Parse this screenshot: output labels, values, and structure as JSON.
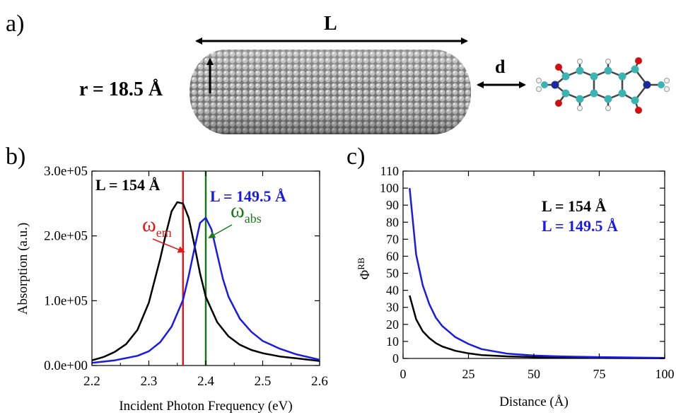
{
  "panel_a": {
    "label": "a)",
    "length_label": "L",
    "radius_label": "r = 18.5 Å",
    "distance_label": "d"
  },
  "colors": {
    "black_series": "#000000",
    "blue_series": "#1a1ae6",
    "red_marker": "#e01818",
    "green_marker": "#1a7a1a",
    "rod_grey": "#8a8a8a",
    "carbon": "#3ab3b3",
    "oxygen": "#d01010",
    "nitrogen": "#1a2a9a",
    "hydrogen": "#f2f2f2"
  },
  "chart_data": [
    {
      "panel": "b)",
      "type": "line",
      "xlabel": "Incident Photon Frequency (eV)",
      "ylabel": "Absorption (a.u.)",
      "xlim": [
        2.2,
        2.6
      ],
      "ylim": [
        0,
        300000
      ],
      "xticks": [
        "2.2",
        "2.3",
        "2.4",
        "2.5",
        "2.6"
      ],
      "xtick_values": [
        2.2,
        2.3,
        2.4,
        2.5,
        2.6
      ],
      "yticks": [
        "0.0e+00",
        "1.0e+05",
        "2.0e+05",
        "3.0e+05"
      ],
      "ytick_values": [
        0,
        100000,
        200000,
        300000
      ],
      "grid": false,
      "series": [
        {
          "name": "L = 154 Å",
          "color": "#000000",
          "x": [
            2.2,
            2.22,
            2.24,
            2.26,
            2.28,
            2.3,
            2.32,
            2.33,
            2.34,
            2.35,
            2.36,
            2.37,
            2.38,
            2.39,
            2.4,
            2.42,
            2.44,
            2.46,
            2.48,
            2.5,
            2.53,
            2.56,
            2.6
          ],
          "y": [
            8000,
            13000,
            21000,
            33000,
            55000,
            97000,
            165000,
            203000,
            238000,
            252000,
            250000,
            228000,
            186000,
            142000,
            106000,
            67000,
            45000,
            32000,
            24000,
            19000,
            14000,
            11000,
            7000
          ]
        },
        {
          "name": "L = 149.5 Å",
          "color": "#1a1ae6",
          "x": [
            2.2,
            2.24,
            2.28,
            2.3,
            2.32,
            2.34,
            2.36,
            2.37,
            2.38,
            2.39,
            2.4,
            2.41,
            2.42,
            2.43,
            2.44,
            2.46,
            2.48,
            2.5,
            2.53,
            2.56,
            2.6
          ],
          "y": [
            4000,
            8000,
            15000,
            22000,
            36000,
            60000,
            101000,
            138000,
            180000,
            220000,
            228000,
            210000,
            172000,
            134000,
            106000,
            72000,
            52000,
            38000,
            26000,
            17000,
            9000
          ]
        }
      ],
      "vlines": [
        {
          "x": 2.36,
          "color": "#e01818"
        },
        {
          "x": 2.4,
          "color": "#1a7a1a"
        }
      ],
      "annotations": {
        "omega_em_main": "ω",
        "omega_em_sub": "em",
        "omega_abs_main": "ω",
        "omega_abs_sub": "abs"
      }
    },
    {
      "panel": "c)",
      "type": "line",
      "xlabel": "Distance (Å)",
      "ylabel_main": "Φ",
      "ylabel_sup": "RB",
      "xlim": [
        0,
        100
      ],
      "ylim": [
        0,
        110
      ],
      "xticks": [
        "0",
        "25",
        "50",
        "75",
        "100"
      ],
      "xtick_values": [
        0,
        25,
        50,
        75,
        100
      ],
      "yticks": [
        "0",
        "10",
        "20",
        "30",
        "40",
        "50",
        "60",
        "70",
        "80",
        "90",
        "100",
        "110"
      ],
      "ytick_values": [
        0,
        10,
        20,
        30,
        40,
        50,
        60,
        70,
        80,
        90,
        100,
        110
      ],
      "grid": false,
      "series": [
        {
          "name": "L = 154 Å",
          "color": "#000000",
          "x": [
            2.5,
            5,
            7.5,
            10,
            12.5,
            15,
            20,
            25,
            30,
            40,
            50,
            60,
            75,
            100
          ],
          "y": [
            37,
            23,
            16,
            12,
            9,
            7,
            4.5,
            3,
            2,
            1.2,
            0.8,
            0.5,
            0.3,
            0.1
          ]
        },
        {
          "name": "L = 149.5 Å",
          "color": "#1a1ae6",
          "x": [
            2.5,
            5,
            7.5,
            10,
            12.5,
            15,
            20,
            25,
            30,
            40,
            50,
            60,
            75,
            100
          ],
          "y": [
            100,
            61,
            43,
            32,
            24,
            19,
            12.5,
            8.5,
            5.5,
            2.8,
            1.7,
            1.2,
            0.8,
            0.3
          ]
        }
      ]
    }
  ]
}
